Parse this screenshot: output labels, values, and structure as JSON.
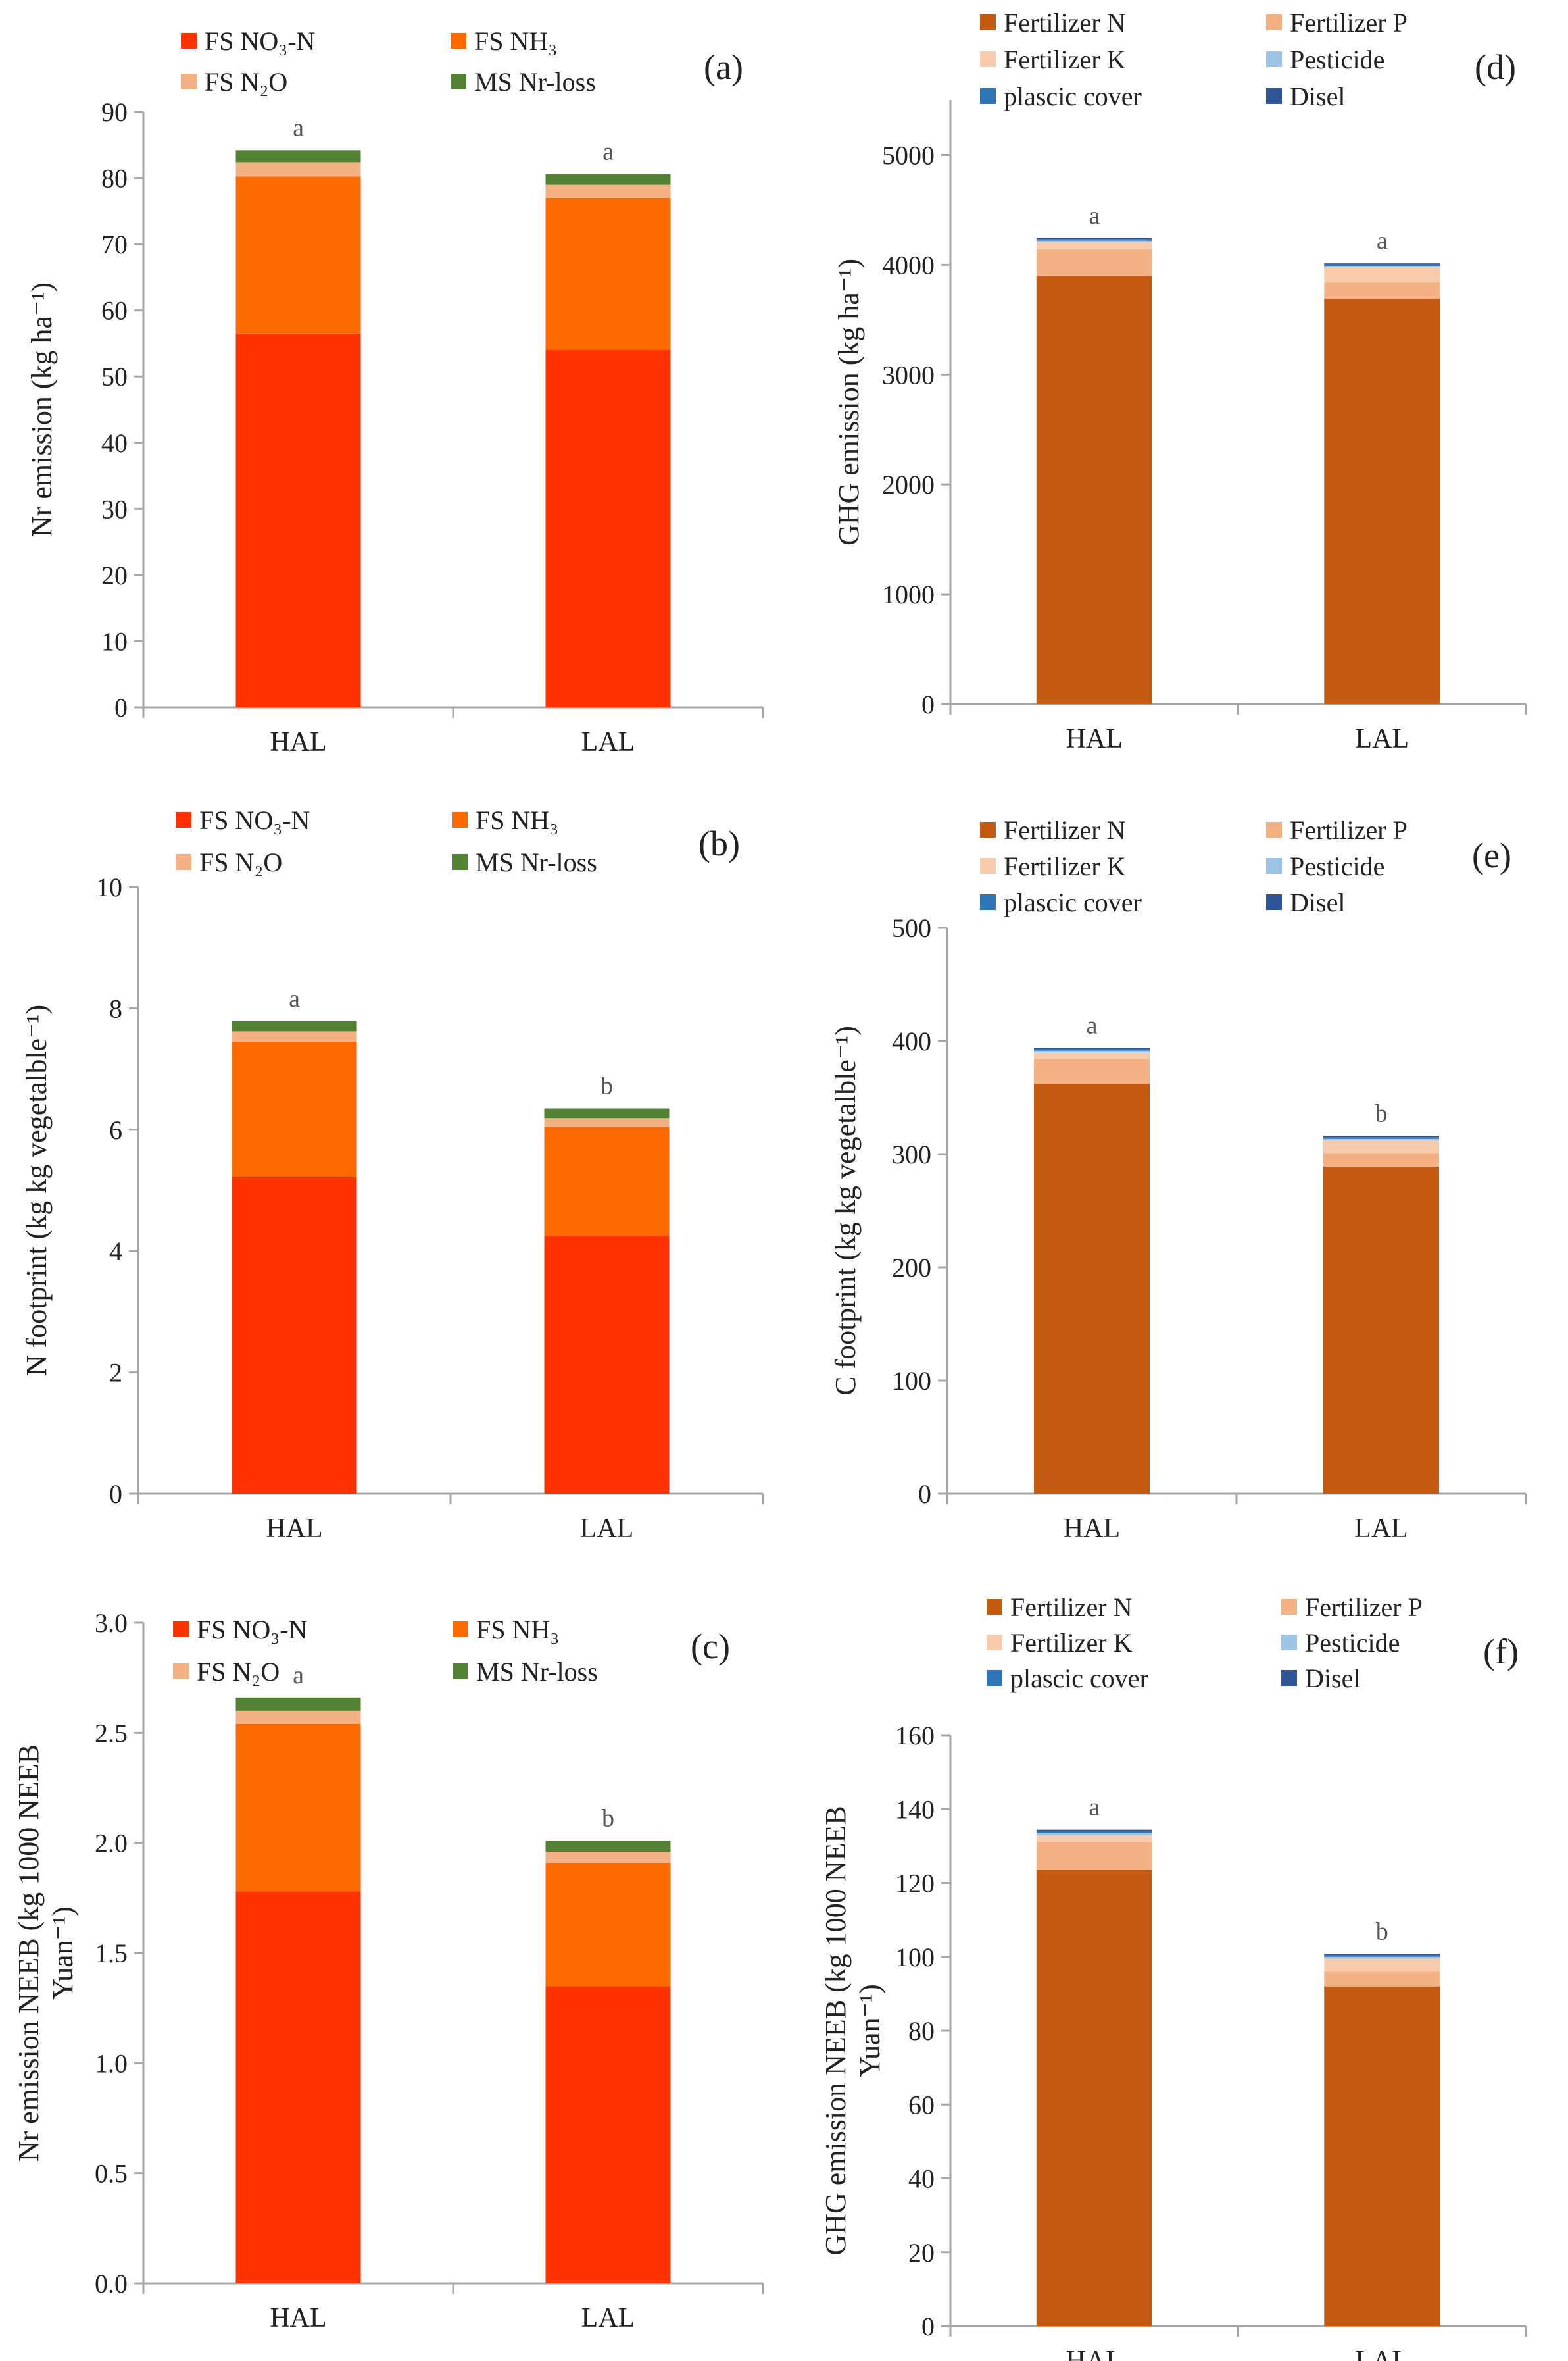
{
  "figure": {
    "colors": {
      "FS NO3-N": "#ff3300",
      "FS NH3": "#ff6a00",
      "FS N2O": "#f4b183",
      "MS Nr-loss": "#548235",
      "Fertilizer N": "#c55a11",
      "Fertilizer P": "#f4b183",
      "Fertilizer K": "#f8cbad",
      "Pesticide": "#9dc3e6",
      "plascic cover": "#2e75b6",
      "Disel": "#2f5597"
    }
  },
  "chart_data": [
    {
      "id": "a",
      "panel_tag": "(a)",
      "type": "bar",
      "stacked": true,
      "categories": [
        "HAL",
        "LAL"
      ],
      "ylabel": "Nr emission (kg ha⁻¹)",
      "ylim": [
        0,
        90
      ],
      "yticks": [
        0,
        10,
        20,
        30,
        40,
        50,
        60,
        70,
        80,
        90
      ],
      "ytick_labels": [
        "0",
        "10",
        "20",
        "30",
        "40",
        "50",
        "60",
        "70",
        "80",
        "90"
      ],
      "legend": [
        "FS NO₃-N",
        "FS NH₃",
        "FS N₂O",
        "MS Nr-loss"
      ],
      "series": [
        {
          "name": "FS NO3-N",
          "values": [
            56.5,
            54.0
          ]
        },
        {
          "name": "FS NH3",
          "values": [
            23.7,
            23.0
          ]
        },
        {
          "name": "FS N2O",
          "values": [
            2.2,
            2.0
          ]
        },
        {
          "name": "MS Nr-loss",
          "values": [
            1.8,
            1.6
          ]
        }
      ],
      "significance": [
        "a",
        "a"
      ]
    },
    {
      "id": "b",
      "panel_tag": "(b)",
      "type": "bar",
      "stacked": true,
      "categories": [
        "HAL",
        "LAL"
      ],
      "ylabel": "N footprint (kg kg vegetalble⁻¹)",
      "ylim": [
        0,
        10
      ],
      "yticks": [
        0,
        2,
        4,
        6,
        8,
        10
      ],
      "ytick_labels": [
        "0",
        "2",
        "4",
        "6",
        "8",
        "10"
      ],
      "legend": [
        "FS NO₃-N",
        "FS NH₃",
        "FS N₂O",
        "MS Nr-loss"
      ],
      "series": [
        {
          "name": "FS NO3-N",
          "values": [
            5.22,
            4.25
          ]
        },
        {
          "name": "FS NH3",
          "values": [
            2.23,
            1.8
          ]
        },
        {
          "name": "FS N2O",
          "values": [
            0.17,
            0.14
          ]
        },
        {
          "name": "MS Nr-loss",
          "values": [
            0.17,
            0.16
          ]
        }
      ],
      "significance": [
        "a",
        "b"
      ]
    },
    {
      "id": "c",
      "panel_tag": "(c)",
      "type": "bar",
      "stacked": true,
      "categories": [
        "HAL",
        "LAL"
      ],
      "ylabel_lines": [
        "Nr emission NEEB (kg 1000 NEEB",
        "Yuan⁻¹)"
      ],
      "ylim": [
        0,
        3.0
      ],
      "yticks": [
        0,
        0.5,
        1.0,
        1.5,
        2.0,
        2.5,
        3.0
      ],
      "ytick_labels": [
        "0.0",
        "0.5",
        "1.0",
        "1.5",
        "2.0",
        "2.5",
        "3.0"
      ],
      "legend": [
        "FS NO₃-N",
        "FS NH₃",
        "FS N₂O",
        "MS Nr-loss"
      ],
      "series": [
        {
          "name": "FS NO3-N",
          "values": [
            1.78,
            1.35
          ]
        },
        {
          "name": "FS NH3",
          "values": [
            0.76,
            0.56
          ]
        },
        {
          "name": "FS N2O",
          "values": [
            0.06,
            0.05
          ]
        },
        {
          "name": "MS Nr-loss",
          "values": [
            0.06,
            0.05
          ]
        }
      ],
      "significance": [
        "a",
        "b"
      ]
    },
    {
      "id": "d",
      "panel_tag": "(d)",
      "type": "bar",
      "stacked": true,
      "categories": [
        "HAL",
        "LAL"
      ],
      "ylabel": "GHG emission (kg ha⁻¹)",
      "ylim": [
        0,
        5500
      ],
      "yticks": [
        0,
        1000,
        2000,
        3000,
        4000,
        5000
      ],
      "ytick_labels": [
        "0",
        "1000",
        "2000",
        "3000",
        "4000",
        "5000"
      ],
      "legend": [
        "Fertilizer N",
        "Fertilizer P",
        "Fertilizer K",
        "Pesticide",
        "plascic cover",
        "Disel"
      ],
      "series": [
        {
          "name": "Fertilizer N",
          "values": [
            3900,
            3690
          ]
        },
        {
          "name": "Fertilizer P",
          "values": [
            240,
            150
          ]
        },
        {
          "name": "Fertilizer K",
          "values": [
            65,
            140
          ]
        },
        {
          "name": "Pesticide",
          "values": [
            15,
            10
          ]
        },
        {
          "name": "plascic cover",
          "values": [
            15,
            15
          ]
        },
        {
          "name": "Disel",
          "values": [
            8,
            8
          ]
        }
      ],
      "significance": [
        "a",
        "a"
      ]
    },
    {
      "id": "e",
      "panel_tag": "(e)",
      "type": "bar",
      "stacked": true,
      "categories": [
        "HAL",
        "LAL"
      ],
      "ylabel": "C footprint (kg kg vegetalble⁻¹)",
      "ylim": [
        0,
        500
      ],
      "yticks": [
        0,
        100,
        200,
        300,
        400,
        500
      ],
      "ytick_labels": [
        "0",
        "100",
        "200",
        "300",
        "400",
        "500"
      ],
      "legend": [
        "Fertilizer N",
        "Fertilizer P",
        "Fertilizer K",
        "Pesticide",
        "plascic cover",
        "Disel"
      ],
      "series": [
        {
          "name": "Fertilizer N",
          "values": [
            362,
            289
          ]
        },
        {
          "name": "Fertilizer P",
          "values": [
            22,
            12
          ]
        },
        {
          "name": "Fertilizer K",
          "values": [
            6,
            11
          ]
        },
        {
          "name": "Pesticide",
          "values": [
            1.5,
            1.5
          ]
        },
        {
          "name": "plascic cover",
          "values": [
            1.5,
            1.5
          ]
        },
        {
          "name": "Disel",
          "values": [
            1,
            1
          ]
        }
      ],
      "significance": [
        "a",
        "b"
      ]
    },
    {
      "id": "f",
      "panel_tag": "(f)",
      "type": "bar",
      "stacked": true,
      "categories": [
        "HAL",
        "LAL"
      ],
      "ylabel_lines": [
        "GHG emission NEEB (kg 1000 NEEB",
        "Yuan⁻¹)"
      ],
      "ylim": [
        0,
        160
      ],
      "yticks": [
        0,
        20,
        40,
        60,
        80,
        100,
        120,
        140,
        160
      ],
      "ytick_labels": [
        "0",
        "20",
        "40",
        "60",
        "80",
        "100",
        "120",
        "140",
        "160"
      ],
      "legend": [
        "Fertilizer N",
        "Fertilizer P",
        "Fertilizer K",
        "Pesticide",
        "plascic cover",
        "Disel"
      ],
      "series": [
        {
          "name": "Fertilizer N",
          "values": [
            123.5,
            92.0
          ]
        },
        {
          "name": "Fertilizer P",
          "values": [
            7.5,
            4.0
          ]
        },
        {
          "name": "Fertilizer K",
          "values": [
            2.0,
            3.5
          ]
        },
        {
          "name": "Pesticide",
          "values": [
            0.6,
            0.5
          ]
        },
        {
          "name": "plascic cover",
          "values": [
            0.5,
            0.5
          ]
        },
        {
          "name": "Disel",
          "values": [
            0.3,
            0.3
          ]
        }
      ],
      "significance": [
        "a",
        "b"
      ]
    }
  ]
}
